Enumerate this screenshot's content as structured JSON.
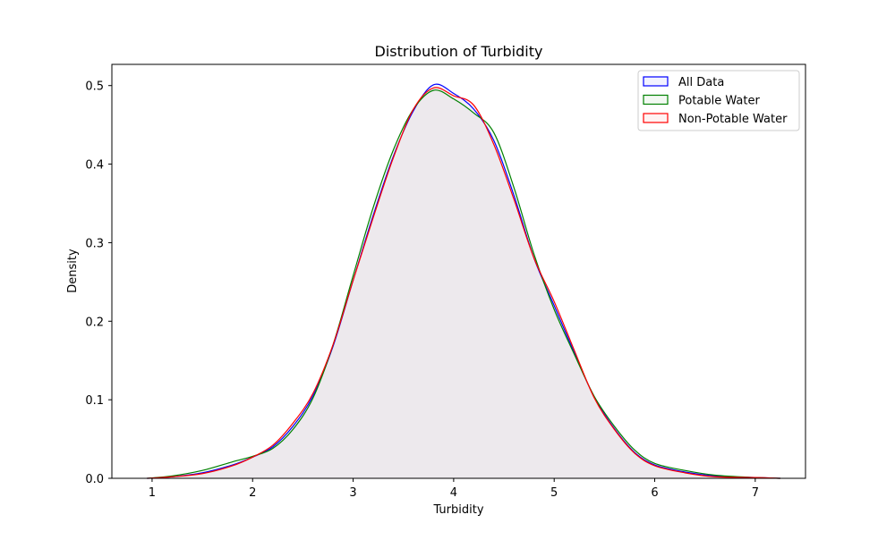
{
  "chart_data": {
    "type": "area",
    "title": "Distribution of Turbidity",
    "xlabel": "Turbidity",
    "ylabel": "Density",
    "xlim": [
      0.6,
      7.5
    ],
    "ylim": [
      0,
      0.527
    ],
    "xticks": [
      1,
      2,
      3,
      4,
      5,
      6,
      7
    ],
    "yticks": [
      0.0,
      0.1,
      0.2,
      0.3,
      0.4,
      0.5
    ],
    "ytick_labels": [
      "0.0",
      "0.1",
      "0.2",
      "0.3",
      "0.4",
      "0.5"
    ],
    "grid": false,
    "legend": "top-right",
    "series": [
      {
        "name": "All Data",
        "color": "#0000ff",
        "x": [
          0.95,
          1.2,
          1.5,
          1.8,
          2.0,
          2.2,
          2.4,
          2.6,
          2.8,
          3.0,
          3.2,
          3.4,
          3.6,
          3.8,
          4.0,
          4.2,
          4.4,
          4.6,
          4.8,
          5.0,
          5.2,
          5.4,
          5.6,
          5.8,
          6.0,
          6.3,
          6.6,
          7.0,
          7.25
        ],
        "y": [
          0.0,
          0.002,
          0.007,
          0.017,
          0.027,
          0.04,
          0.066,
          0.105,
          0.168,
          0.252,
          0.335,
          0.41,
          0.468,
          0.501,
          0.49,
          0.47,
          0.43,
          0.36,
          0.28,
          0.22,
          0.16,
          0.103,
          0.063,
          0.033,
          0.017,
          0.008,
          0.003,
          0.001,
          0.0
        ]
      },
      {
        "name": "Potable Water",
        "color": "#008000",
        "x": [
          0.95,
          1.2,
          1.5,
          1.8,
          2.0,
          2.2,
          2.4,
          2.6,
          2.8,
          3.0,
          3.2,
          3.4,
          3.6,
          3.8,
          4.0,
          4.2,
          4.4,
          4.6,
          4.8,
          5.0,
          5.2,
          5.4,
          5.6,
          5.8,
          6.0,
          6.3,
          6.6,
          7.0,
          7.25
        ],
        "y": [
          0.0,
          0.003,
          0.01,
          0.021,
          0.028,
          0.038,
          0.062,
          0.102,
          0.17,
          0.258,
          0.345,
          0.418,
          0.47,
          0.494,
          0.483,
          0.465,
          0.44,
          0.37,
          0.285,
          0.215,
          0.158,
          0.104,
          0.066,
          0.036,
          0.019,
          0.01,
          0.004,
          0.001,
          0.0
        ]
      },
      {
        "name": "Non-Potable Water",
        "color": "#ff0000",
        "x": [
          0.95,
          1.2,
          1.5,
          1.8,
          2.0,
          2.2,
          2.4,
          2.6,
          2.8,
          3.0,
          3.2,
          3.4,
          3.6,
          3.8,
          4.0,
          4.2,
          4.4,
          4.6,
          4.8,
          5.0,
          5.2,
          5.4,
          5.6,
          5.8,
          6.0,
          6.3,
          6.6,
          7.0,
          7.25
        ],
        "y": [
          0.0,
          0.002,
          0.006,
          0.016,
          0.027,
          0.042,
          0.07,
          0.108,
          0.17,
          0.252,
          0.332,
          0.408,
          0.47,
          0.497,
          0.487,
          0.475,
          0.425,
          0.355,
          0.28,
          0.225,
          0.163,
          0.102,
          0.062,
          0.032,
          0.016,
          0.007,
          0.002,
          0.001,
          0.0
        ]
      }
    ]
  }
}
